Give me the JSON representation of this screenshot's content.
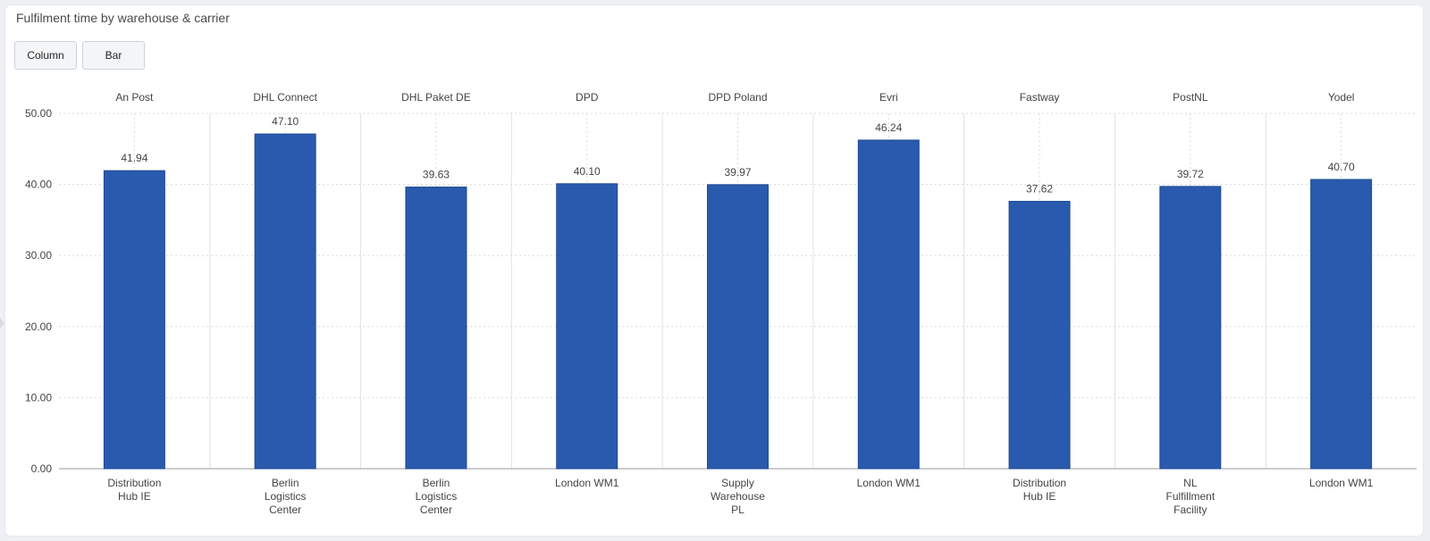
{
  "header": {
    "title": "Fulfilment time by warehouse & carrier"
  },
  "toolbar": {
    "column_label": "Column",
    "bar_label": "Bar"
  },
  "colors": {
    "bar": "#2a5aad",
    "bar_stroke": "#1e4a96",
    "grid": "#d9d9d9",
    "text": "#444444"
  },
  "chart_data": {
    "type": "bar",
    "title": "Fulfilment time by warehouse & carrier",
    "xlabel": "",
    "ylabel": "",
    "ylim": [
      0,
      50
    ],
    "yticks": [
      "0.00",
      "10.00",
      "20.00",
      "30.00",
      "40.00",
      "50.00"
    ],
    "ytick_values": [
      0,
      10,
      20,
      30,
      40,
      50
    ],
    "grid": true,
    "groups": [
      "An Post",
      "DHL Connect",
      "DHL Paket DE",
      "DPD",
      "DPD Poland",
      "Evri",
      "Fastway",
      "PostNL",
      "Yodel"
    ],
    "categories": [
      [
        "Distribution",
        "Hub IE"
      ],
      [
        "Berlin",
        "Logistics",
        "Center"
      ],
      [
        "Berlin",
        "Logistics",
        "Center"
      ],
      [
        "London WM1"
      ],
      [
        "Supply",
        "Warehouse",
        "PL"
      ],
      [
        "London WM1"
      ],
      [
        "Distribution",
        "Hub IE"
      ],
      [
        "NL",
        "Fulfillment",
        "Facility"
      ],
      [
        "London WM1"
      ]
    ],
    "values": [
      41.94,
      47.1,
      39.63,
      40.1,
      39.97,
      46.24,
      37.62,
      39.72,
      40.7
    ],
    "value_labels": [
      "41.94",
      "47.10",
      "39.63",
      "40.10",
      "39.97",
      "46.24",
      "37.62",
      "39.72",
      "40.70"
    ]
  }
}
